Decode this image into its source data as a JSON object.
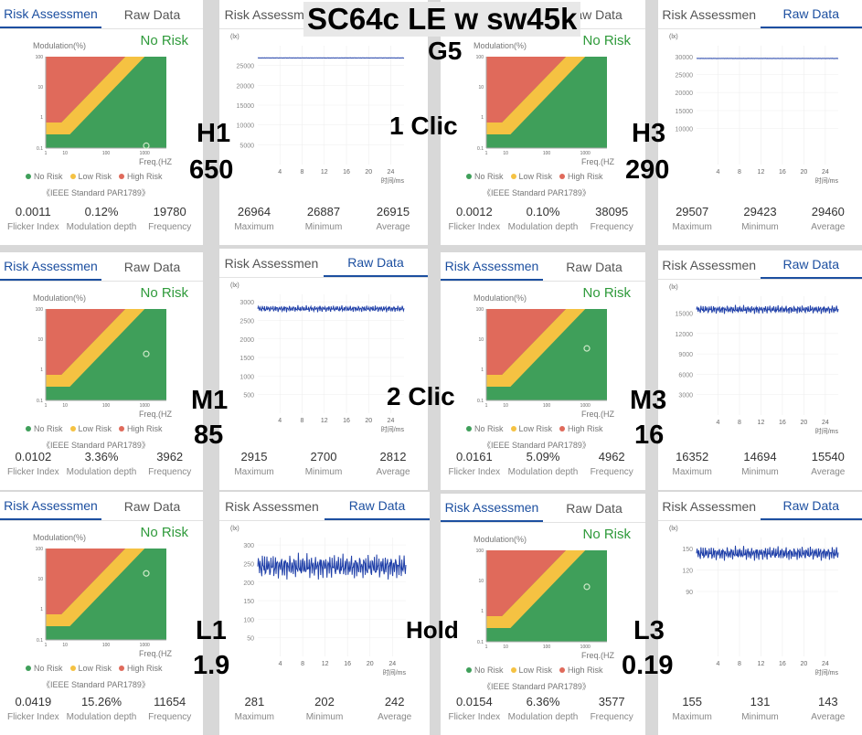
{
  "tabs": {
    "risk": "Risk Assessmen",
    "raw": "Raw Data"
  },
  "risk_common": {
    "mod_label": "Modulation(%)",
    "no_risk": "No Risk",
    "freq_label": "Freq.(HZ",
    "legend": [
      "No Risk",
      "Low Risk",
      "High Risk"
    ],
    "standard": "《IEEE Standard PAR1789》",
    "metric_labels": [
      "Flicker Index",
      "Modulation depth",
      "Frequency"
    ],
    "colors": {
      "no_risk": "#3f9f5a",
      "low_risk": "#f5c242",
      "high_risk": "#e06a5b"
    }
  },
  "raw_common": {
    "unit": "(lx)",
    "x_label": "时间/ms",
    "x_ticks": [
      "4",
      "8",
      "12",
      "16",
      "20",
      "24"
    ],
    "metric_labels": [
      "Maximum",
      "Minimum",
      "Average"
    ],
    "line_color": "#1f3fa8"
  },
  "panels": [
    {
      "id": "r1",
      "flicker": "0.0011",
      "depth": "0.12%",
      "freq": "19780",
      "point": {
        "freq_hz": 1000,
        "mod_pct": 0.12
      }
    },
    {
      "id": "w1",
      "y_ticks": [
        "25000",
        "20000",
        "15000",
        "10000",
        "5000"
      ],
      "max": "26964",
      "min": "26887",
      "avg": "26915",
      "series": {
        "mean": 26915,
        "amp": 40,
        "ymax": 30000
      }
    },
    {
      "id": "r2",
      "flicker": "0.0012",
      "depth": "0.10%",
      "freq": "38095"
    },
    {
      "id": "w2",
      "y_ticks": [
        "30000",
        "25000",
        "20000",
        "15000",
        "10000"
      ],
      "max": "29507",
      "min": "29423",
      "avg": "29460",
      "series": {
        "mean": 29460,
        "amp": 40,
        "ymax": 33000
      }
    },
    {
      "id": "r3",
      "flicker": "0.0102",
      "depth": "3.36%",
      "freq": "3962",
      "point": {
        "freq_hz": 1000,
        "mod_pct": 3.36
      }
    },
    {
      "id": "w3",
      "y_ticks": [
        "3000",
        "2500",
        "2000",
        "1500",
        "1000",
        "500"
      ],
      "max": "2915",
      "min": "2700",
      "avg": "2812",
      "series": {
        "mean": 2812,
        "amp": 100,
        "ymax": 3200
      }
    },
    {
      "id": "r4",
      "flicker": "0.0161",
      "depth": "5.09%",
      "freq": "4962",
      "point": {
        "freq_hz": 1000,
        "mod_pct": 5.09
      }
    },
    {
      "id": "w4",
      "y_ticks": [
        "15000",
        "12000",
        "9000",
        "6000",
        "3000"
      ],
      "max": "16352",
      "min": "14694",
      "avg": "15540",
      "series": {
        "mean": 15540,
        "amp": 700,
        "ymax": 17500
      }
    },
    {
      "id": "r5",
      "flicker": "0.0419",
      "depth": "15.26%",
      "freq": "11654",
      "point": {
        "freq_hz": 1000,
        "mod_pct": 15.26
      }
    },
    {
      "id": "w5",
      "y_ticks": [
        "300",
        "250",
        "200",
        "150",
        "100",
        "50"
      ],
      "max": "281",
      "min": "202",
      "avg": "242",
      "series": {
        "mean": 242,
        "amp": 38,
        "ymax": 320
      }
    },
    {
      "id": "r6",
      "flicker": "0.0154",
      "depth": "6.36%",
      "freq": "3577",
      "point": {
        "freq_hz": 1000,
        "mod_pct": 6.36
      }
    },
    {
      "id": "w6",
      "y_ticks": [
        "150",
        "120",
        "90"
      ],
      "max": "155",
      "min": "131",
      "avg": "143",
      "series": {
        "mean": 143,
        "amp": 11,
        "ymax": 165
      }
    }
  ],
  "overlays": {
    "title": "SC64c LE w sw45k",
    "g5": "G5",
    "h1": "H1",
    "h1_val": "650",
    "click1": "1 Clic",
    "h3": "H3",
    "h3_val": "290",
    "m1": "M1",
    "m1_val": "85",
    "click2": "2 Clic",
    "m3": "M3",
    "m3_val": "16",
    "l1": "L1",
    "l1_val": "1.9",
    "hold": "Hold",
    "l3": "L3",
    "l3_val": "0.19"
  }
}
